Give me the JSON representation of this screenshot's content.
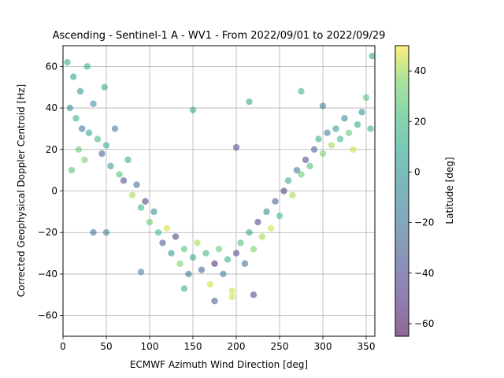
{
  "chart_data": {
    "type": "scatter",
    "title": "Ascending - Sentinel-1 A - WV1 - From 2022/09/01 to 2022/09/29",
    "xlabel": "ECMWF Azimuth Wind Direction [deg]",
    "ylabel": "Corrected Geophysical Doppler Centroid [Hz]",
    "xlim": [
      0,
      360
    ],
    "ylim": [
      -70,
      70
    ],
    "xticks": [
      0,
      50,
      100,
      150,
      200,
      250,
      300,
      350
    ],
    "yticks": [
      -60,
      -40,
      -20,
      0,
      20,
      40,
      60
    ],
    "grid": true,
    "colorbar": {
      "label": "Latitude [deg]",
      "range": [
        -65,
        50
      ],
      "ticks": [
        -60,
        -40,
        -20,
        0,
        20,
        40
      ],
      "colormap": "viridis",
      "alpha": 0.55
    },
    "trend": "V-shaped: high (~25 Hz) near 0-60 deg, minimum (~-30 Hz) near 180 deg, rising to ~25 Hz near 350 deg",
    "points": [
      {
        "x": 5,
        "y": 62,
        "c": 10
      },
      {
        "x": 12,
        "y": 55,
        "c": 5
      },
      {
        "x": 20,
        "y": 48,
        "c": 0
      },
      {
        "x": 8,
        "y": 40,
        "c": -10
      },
      {
        "x": 15,
        "y": 35,
        "c": 15
      },
      {
        "x": 22,
        "y": 30,
        "c": -20
      },
      {
        "x": 30,
        "y": 28,
        "c": 5
      },
      {
        "x": 35,
        "y": 42,
        "c": -5
      },
      {
        "x": 40,
        "y": 25,
        "c": 20
      },
      {
        "x": 18,
        "y": 20,
        "c": 30
      },
      {
        "x": 25,
        "y": 15,
        "c": 35
      },
      {
        "x": 10,
        "y": 10,
        "c": 25
      },
      {
        "x": 45,
        "y": 18,
        "c": -30
      },
      {
        "x": 50,
        "y": 22,
        "c": 10
      },
      {
        "x": 55,
        "y": 12,
        "c": 0
      },
      {
        "x": 60,
        "y": 30,
        "c": -15
      },
      {
        "x": 28,
        "y": 60,
        "c": 12
      },
      {
        "x": 48,
        "y": 50,
        "c": 8
      },
      {
        "x": 65,
        "y": 8,
        "c": 25
      },
      {
        "x": 70,
        "y": 5,
        "c": -40
      },
      {
        "x": 75,
        "y": 15,
        "c": 10
      },
      {
        "x": 80,
        "y": -2,
        "c": 40
      },
      {
        "x": 85,
        "y": 3,
        "c": -25
      },
      {
        "x": 90,
        "y": -8,
        "c": 15
      },
      {
        "x": 95,
        "y": -5,
        "c": -50
      },
      {
        "x": 100,
        "y": -15,
        "c": 30
      },
      {
        "x": 105,
        "y": -10,
        "c": -10
      },
      {
        "x": 110,
        "y": -20,
        "c": 20
      },
      {
        "x": 115,
        "y": -25,
        "c": -35
      },
      {
        "x": 120,
        "y": -18,
        "c": 45
      },
      {
        "x": 125,
        "y": -30,
        "c": 0
      },
      {
        "x": 130,
        "y": -22,
        "c": -45
      },
      {
        "x": 135,
        "y": -35,
        "c": 35
      },
      {
        "x": 140,
        "y": -28,
        "c": 25
      },
      {
        "x": 145,
        "y": -40,
        "c": -20
      },
      {
        "x": 150,
        "y": -32,
        "c": 10
      },
      {
        "x": 155,
        "y": -25,
        "c": 40
      },
      {
        "x": 160,
        "y": -38,
        "c": -30
      },
      {
        "x": 165,
        "y": -30,
        "c": 20
      },
      {
        "x": 170,
        "y": -45,
        "c": 45
      },
      {
        "x": 175,
        "y": -35,
        "c": -55
      },
      {
        "x": 180,
        "y": -28,
        "c": 30
      },
      {
        "x": 185,
        "y": -40,
        "c": -15
      },
      {
        "x": 190,
        "y": -33,
        "c": 15
      },
      {
        "x": 195,
        "y": -48,
        "c": 45
      },
      {
        "x": 200,
        "y": -30,
        "c": -40
      },
      {
        "x": 205,
        "y": -25,
        "c": 25
      },
      {
        "x": 210,
        "y": -35,
        "c": -25
      },
      {
        "x": 215,
        "y": -20,
        "c": 5
      },
      {
        "x": 220,
        "y": -28,
        "c": 35
      },
      {
        "x": 225,
        "y": -15,
        "c": -45
      },
      {
        "x": 230,
        "y": -22,
        "c": 40
      },
      {
        "x": 235,
        "y": -10,
        "c": -10
      },
      {
        "x": 240,
        "y": -18,
        "c": 45
      },
      {
        "x": 245,
        "y": -5,
        "c": -35
      },
      {
        "x": 250,
        "y": -12,
        "c": 20
      },
      {
        "x": 255,
        "y": 0,
        "c": -50
      },
      {
        "x": 260,
        "y": 5,
        "c": 10
      },
      {
        "x": 265,
        "y": -2,
        "c": 40
      },
      {
        "x": 270,
        "y": 10,
        "c": -20
      },
      {
        "x": 275,
        "y": 8,
        "c": 30
      },
      {
        "x": 280,
        "y": 15,
        "c": -40
      },
      {
        "x": 285,
        "y": 12,
        "c": 25
      },
      {
        "x": 290,
        "y": 20,
        "c": -30
      },
      {
        "x": 295,
        "y": 25,
        "c": 15
      },
      {
        "x": 300,
        "y": 18,
        "c": 35
      },
      {
        "x": 305,
        "y": 28,
        "c": -15
      },
      {
        "x": 310,
        "y": 22,
        "c": 40
      },
      {
        "x": 315,
        "y": 30,
        "c": 0
      },
      {
        "x": 320,
        "y": 25,
        "c": 20
      },
      {
        "x": 325,
        "y": 35,
        "c": -10
      },
      {
        "x": 330,
        "y": 28,
        "c": 30
      },
      {
        "x": 335,
        "y": 20,
        "c": 45
      },
      {
        "x": 340,
        "y": 32,
        "c": 10
      },
      {
        "x": 345,
        "y": 38,
        "c": -5
      },
      {
        "x": 350,
        "y": 45,
        "c": 25
      },
      {
        "x": 355,
        "y": 30,
        "c": 15
      },
      {
        "x": 357,
        "y": 65,
        "c": 5
      },
      {
        "x": 150,
        "y": 39,
        "c": 10
      },
      {
        "x": 200,
        "y": 21,
        "c": -40
      },
      {
        "x": 215,
        "y": 43,
        "c": 10
      },
      {
        "x": 275,
        "y": 48,
        "c": 20
      },
      {
        "x": 300,
        "y": 41,
        "c": -15
      },
      {
        "x": 90,
        "y": -39,
        "c": -10
      },
      {
        "x": 175,
        "y": -53,
        "c": -35
      },
      {
        "x": 220,
        "y": -50,
        "c": -45
      },
      {
        "x": 195,
        "y": -51,
        "c": 45
      },
      {
        "x": 35,
        "y": -20,
        "c": -20
      },
      {
        "x": 50,
        "y": -20,
        "c": -15
      },
      {
        "x": 140,
        "y": -47,
        "c": 15
      }
    ]
  }
}
